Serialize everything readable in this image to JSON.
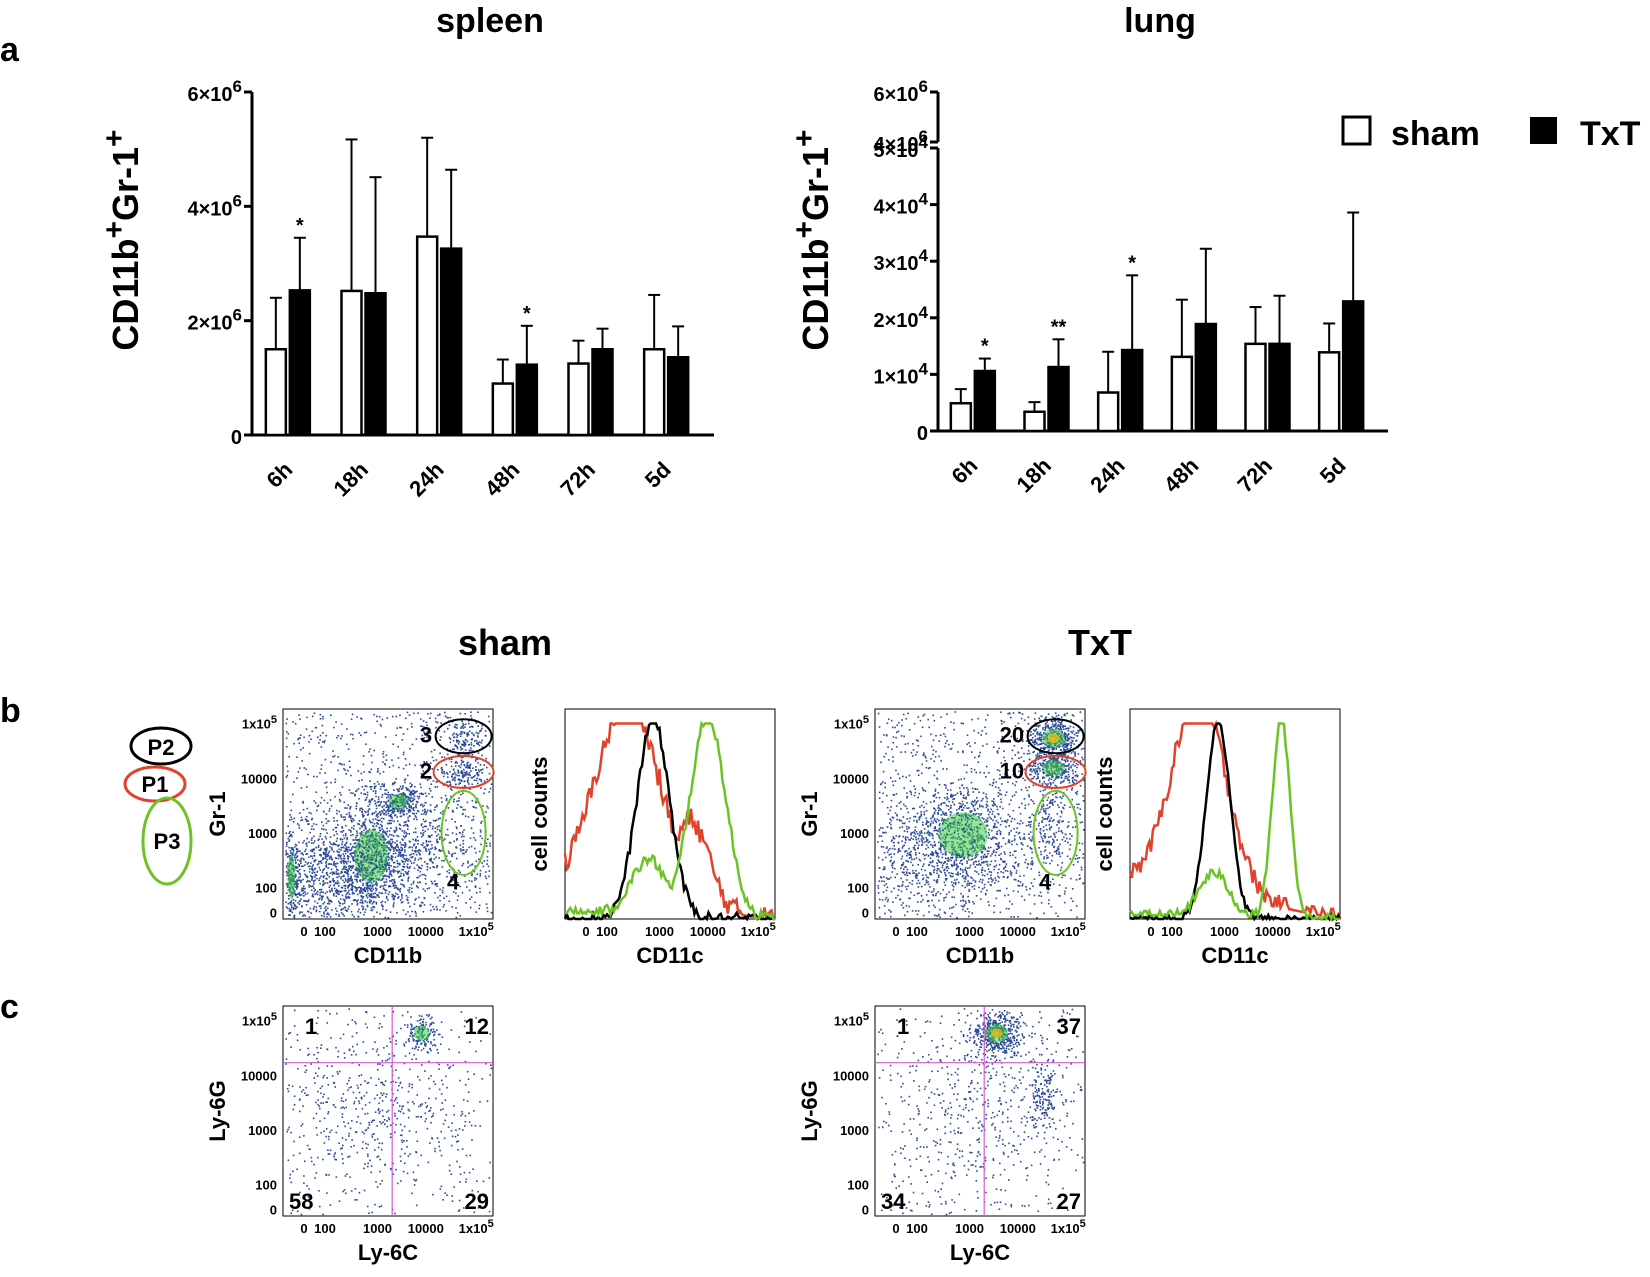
{
  "panel_labels": {
    "a": "a",
    "b": "b",
    "c": "c"
  },
  "colors": {
    "sham": "#ffffff",
    "txt": "#000000",
    "p1": "#e0432b",
    "p2": "#000000",
    "p3": "#6cc324",
    "quad": "#d45bd6",
    "dots": "#2b4a9a",
    "dense": "#3fcf3f",
    "hot": "#f2c01a"
  },
  "chart_data": [
    {
      "type": "bar",
      "title": "spleen",
      "ylabel": "CD11b+Gr-1+",
      "ylim": [
        0,
        6000000
      ],
      "yticks": [
        {
          "v": 0,
          "base": "0",
          "exp": ""
        },
        {
          "v": 2000000,
          "base": "2×10",
          "exp": "6"
        },
        {
          "v": 4000000,
          "base": "4×10",
          "exp": "6"
        },
        {
          "v": 6000000,
          "base": "6×10",
          "exp": "6"
        }
      ],
      "categories": [
        "6h",
        "18h",
        "24h",
        "48h",
        "72h",
        "5d"
      ],
      "series": [
        {
          "name": "sham",
          "values": [
            1500000,
            2520000,
            3470000,
            900000,
            1250000,
            1500000
          ],
          "errors": [
            900000,
            2650000,
            1730000,
            420000,
            400000,
            950000
          ]
        },
        {
          "name": "TxT",
          "values": [
            2530000,
            2480000,
            3260000,
            1230000,
            1500000,
            1360000
          ],
          "errors": [
            920000,
            2030000,
            1380000,
            680000,
            360000,
            540000
          ]
        }
      ],
      "significance": [
        {
          "cat": 0,
          "label": "*"
        },
        {
          "cat": 3,
          "label": "*"
        }
      ]
    },
    {
      "type": "bar",
      "title": "lung",
      "ylabel": "CD11b+Gr-1+",
      "ylim": [
        0,
        50000
      ],
      "upper_segment_ticks": [
        {
          "base": "4×10",
          "exp": "6"
        },
        {
          "base": "6×10",
          "exp": "6"
        }
      ],
      "yticks": [
        {
          "v": 0,
          "base": "0",
          "exp": ""
        },
        {
          "v": 10000,
          "base": "1×10",
          "exp": "4"
        },
        {
          "v": 20000,
          "base": "2×10",
          "exp": "4"
        },
        {
          "v": 30000,
          "base": "3×10",
          "exp": "4"
        },
        {
          "v": 40000,
          "base": "4×10",
          "exp": "4"
        },
        {
          "v": 50000,
          "base": "5×10",
          "exp": "4"
        }
      ],
      "categories": [
        "6h",
        "18h",
        "24h",
        "48h",
        "72h",
        "5d"
      ],
      "series": [
        {
          "name": "sham",
          "values": [
            4900,
            3400,
            6800,
            13100,
            15400,
            13900
          ],
          "errors": [
            2500,
            1700,
            7200,
            10100,
            6500,
            5100
          ]
        },
        {
          "name": "TxT",
          "values": [
            10600,
            11300,
            14300,
            18900,
            15400,
            22900
          ],
          "errors": [
            2200,
            4900,
            13200,
            13300,
            8500,
            15700
          ]
        }
      ],
      "significance": [
        {
          "cat": 0,
          "label": "*"
        },
        {
          "cat": 1,
          "label": "**"
        },
        {
          "cat": 2,
          "label": "*"
        }
      ]
    }
  ],
  "legend": {
    "sham": "sham",
    "txt": "TxT"
  },
  "group_titles": {
    "sham": "sham",
    "txt": "TxT"
  },
  "gate_legend": {
    "p2": "P2",
    "p1": "P1",
    "p3": "P3"
  },
  "flow": {
    "scatter_ylabel": "Gr-1",
    "scatter_xlabel": "CD11b",
    "hist_ylabel": "cell counts",
    "hist_xlabel": "CD11c",
    "y_ticks": [
      {
        "base": "1x10",
        "exp": "5"
      },
      {
        "base": "10000",
        "exp": ""
      },
      {
        "base": "1000",
        "exp": ""
      },
      {
        "base": "100",
        "exp": ""
      },
      {
        "base": "0",
        "exp": ""
      }
    ],
    "x_ticks": [
      {
        "base": "0",
        "exp": ""
      },
      {
        "base": "100",
        "exp": ""
      },
      {
        "base": "1000",
        "exp": ""
      },
      {
        "base": "10000",
        "exp": ""
      },
      {
        "base": "1x10",
        "exp": "5"
      }
    ],
    "sham_gates": {
      "p2": "3",
      "p1": "2",
      "p3": "4"
    },
    "txt_gates": {
      "p2": "20",
      "p1": "10",
      "p3": "4"
    },
    "quad_ylabel": "Ly-6G",
    "quad_xlabel": "Ly-6C",
    "sham_quadrants": {
      "ul": "1",
      "ur": "12",
      "ll": "58",
      "lr": "29"
    },
    "txt_quadrants": {
      "ul": "1",
      "ur": "37",
      "ll": "34",
      "lr": "27"
    }
  }
}
